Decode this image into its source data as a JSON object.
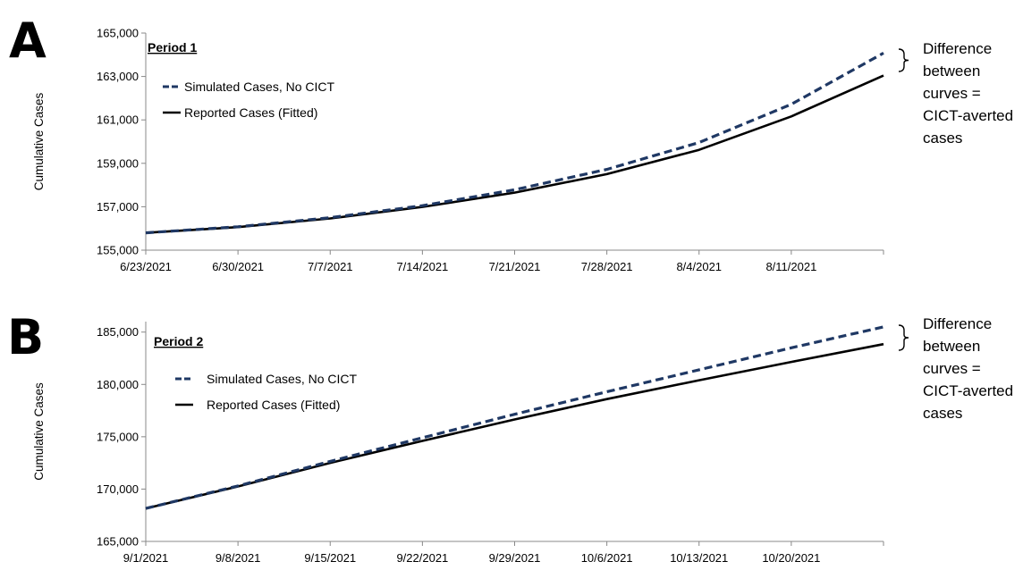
{
  "chart_data": [
    {
      "type": "line",
      "panel_label": "A",
      "title": "Period 1",
      "xlabel": "",
      "ylabel": "Cumulative Cases",
      "categories": [
        "6/23/2021",
        "6/30/2021",
        "7/7/2021",
        "7/14/2021",
        "7/21/2021",
        "7/28/2021",
        "8/4/2021",
        "8/11/2021"
      ],
      "x": [
        "6/23/2021",
        "6/30/2021",
        "7/7/2021",
        "7/14/2021",
        "7/21/2021",
        "7/28/2021",
        "8/4/2021",
        "8/11/2021",
        "8/18/2021"
      ],
      "ylim": [
        155000,
        165000
      ],
      "yticks": [
        "155,000",
        "157,000",
        "159,000",
        "161,000",
        "163,000",
        "165,000"
      ],
      "ytick_values": [
        155000,
        157000,
        159000,
        161000,
        163000,
        165000
      ],
      "grid": false,
      "legend_position": "top-left",
      "series": [
        {
          "name": "Simulated Cases, No CICT",
          "style": "dashed",
          "color": "#1f3864",
          "values": [
            155800,
            156080,
            156500,
            157050,
            157780,
            158720,
            159960,
            161720,
            164080
          ]
        },
        {
          "name": "Reported Cases (Fitted)",
          "style": "solid",
          "color": "#000000",
          "values": [
            155800,
            156060,
            156460,
            156990,
            157650,
            158500,
            159620,
            161160,
            163040
          ]
        }
      ],
      "annotation": [
        "Difference",
        "between",
        "curves =",
        "CICT-averted",
        "cases"
      ]
    },
    {
      "type": "line",
      "panel_label": "B",
      "title": "Period 2",
      "xlabel": "",
      "ylabel": "Cumulative Cases",
      "categories": [
        "9/1/2021",
        "9/8/2021",
        "9/15/2021",
        "9/22/2021",
        "9/29/2021",
        "10/6/2021",
        "10/13/2021",
        "10/20/2021"
      ],
      "x": [
        "9/1/2021",
        "9/8/2021",
        "9/15/2021",
        "9/22/2021",
        "9/29/2021",
        "10/6/2021",
        "10/13/2021",
        "10/20/2021",
        "10/27/2021"
      ],
      "ylim": [
        165000,
        186000
      ],
      "yticks": [
        "165,000",
        "170,000",
        "175,000",
        "180,000",
        "185,000"
      ],
      "ytick_values": [
        165000,
        170000,
        175000,
        180000,
        185000
      ],
      "grid": false,
      "legend_position": "top-left",
      "series": [
        {
          "name": "Simulated Cases, No CICT",
          "style": "dashed",
          "color": "#1f3864",
          "values": [
            168150,
            170300,
            172650,
            174900,
            177150,
            179300,
            181400,
            183500,
            185500
          ]
        },
        {
          "name": "Reported Cases (Fitted)",
          "style": "solid",
          "color": "#000000",
          "values": [
            168150,
            170250,
            172500,
            174600,
            176650,
            178600,
            180400,
            182150,
            183850
          ]
        }
      ],
      "annotation": [
        "Difference",
        "between",
        "curves =",
        "CICT-averted",
        "cases"
      ]
    }
  ]
}
